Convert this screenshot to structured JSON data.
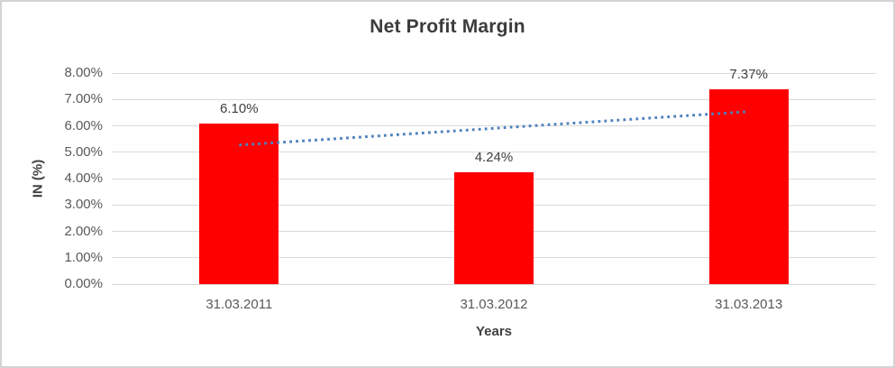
{
  "chart_data": {
    "type": "bar",
    "title": "Net Profit Margin",
    "xlabel": "Years",
    "ylabel": "IN (%)",
    "categories": [
      "31.03.2011",
      "31.03.2012",
      "31.03.2013"
    ],
    "values": [
      6.1,
      4.24,
      7.37
    ],
    "data_labels": [
      "6.10%",
      "4.24%",
      "7.37%"
    ],
    "ylim": [
      0,
      8
    ],
    "ytick_labels": [
      "0.00%",
      "1.00%",
      "2.00%",
      "3.00%",
      "4.00%",
      "5.00%",
      "6.00%",
      "7.00%",
      "8.00%"
    ],
    "grid": true,
    "legend": false,
    "bar_color": "#ff0000",
    "gridline_color": "#d9d9d9",
    "tick_text_color": "#595959",
    "label_text_color": "#404040",
    "trendline": {
      "style": "dotted",
      "color": "#4f81bd",
      "x_start_index": 0,
      "x_end_index": 2,
      "start_value": 5.27,
      "end_value": 6.54
    }
  }
}
